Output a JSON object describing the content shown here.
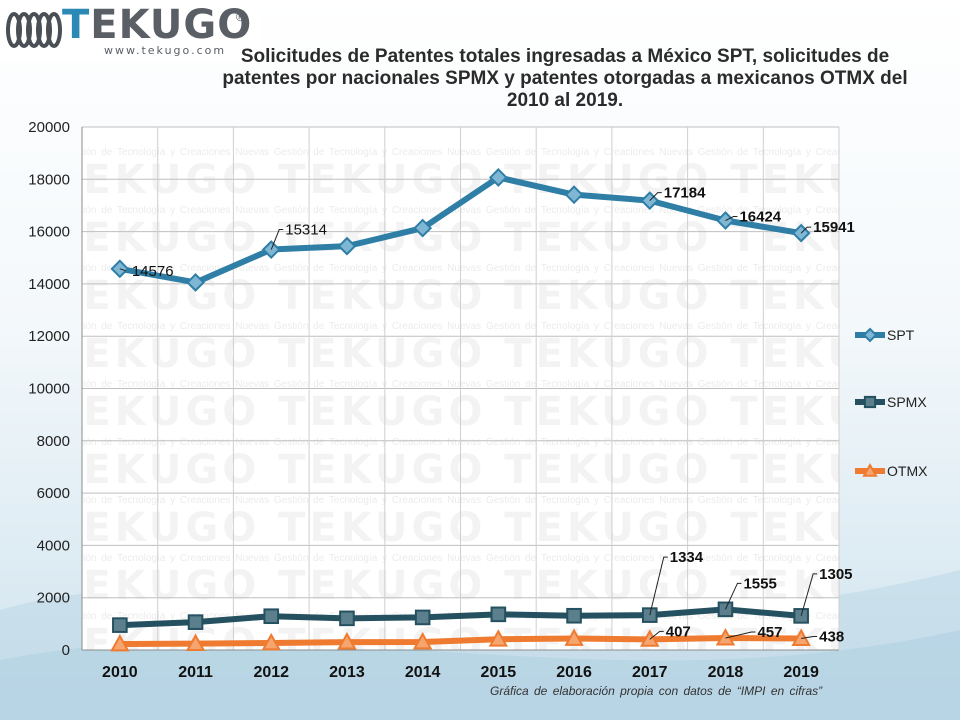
{
  "logo": {
    "text_t": "T",
    "text_rest": "EKUGO",
    "reg": "®",
    "url": "www.tekugo.com"
  },
  "watermark": {
    "logo": "TEKUGO",
    "url": "www.tekugo.com",
    "tagline": "Gestión de Tecnología y Creaciones Nuevas"
  },
  "title_lines": [
    "Solicitudes  de Patentes totales ingresadas  a México SPT, solicitudes  de",
    "patentes por nacionales  SPMX y patentes otorgadas a mexicanos OTMX del",
    "2010 al 2019."
  ],
  "source_note": "Gráfica de elaboración  propia  con datos de “IMPI en cifras”",
  "colors": {
    "spt": "#2e7ea6",
    "spmx": "#24505f",
    "otmx": "#ee7b30"
  },
  "chart_data": {
    "type": "line",
    "x": [
      "2010",
      "2011",
      "2012",
      "2013",
      "2014",
      "2015",
      "2016",
      "2017",
      "2018",
      "2019"
    ],
    "ylim": [
      0,
      20000
    ],
    "yticks": [
      "0",
      "2000",
      "4000",
      "6000",
      "8000",
      "10000",
      "12000",
      "14000",
      "16000",
      "18000",
      "20000"
    ],
    "grid": true,
    "legend_position": "right",
    "series": [
      {
        "name": "SPT",
        "marker": "diamond",
        "values": [
          14576,
          14055,
          15314,
          15444,
          16135,
          18071,
          17413,
          17184,
          16424,
          15941
        ],
        "labels": [
          {
            "index": 0,
            "text": "14576",
            "bold": false
          },
          {
            "index": 2,
            "text": "15314",
            "bold": false
          },
          {
            "index": 7,
            "text": "17184",
            "bold": true
          },
          {
            "index": 8,
            "text": "16424",
            "bold": true
          },
          {
            "index": 9,
            "text": "15941",
            "bold": true
          }
        ]
      },
      {
        "name": "SPMX",
        "marker": "square",
        "values": [
          951,
          1065,
          1292,
          1210,
          1246,
          1364,
          1310,
          1334,
          1555,
          1305
        ],
        "labels": [
          {
            "index": 7,
            "text": "1334",
            "bold": true
          },
          {
            "index": 8,
            "text": "1555",
            "bold": true
          },
          {
            "index": 9,
            "text": "1305",
            "bold": true
          }
        ]
      },
      {
        "name": "OTMX",
        "marker": "triangle",
        "values": [
          229,
          245,
          269,
          302,
          305,
          410,
          440,
          407,
          457,
          438
        ],
        "labels": [
          {
            "index": 7,
            "text": "407",
            "bold": true
          },
          {
            "index": 8,
            "text": "457",
            "bold": true
          },
          {
            "index": 9,
            "text": "438",
            "bold": true
          }
        ]
      }
    ]
  }
}
